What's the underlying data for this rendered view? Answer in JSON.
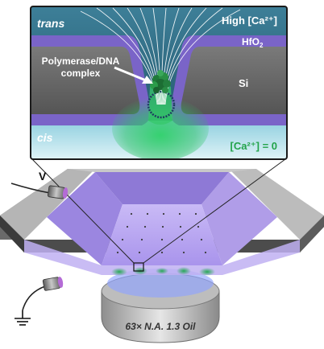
{
  "inset": {
    "trans_label": "trans",
    "cis_label": "cis",
    "high_ca_label": "High [Ca²⁺]",
    "hfo2_label": "HfO",
    "hfo2_subscript": "2",
    "si_label": "Si",
    "complex_label_line1": "Polymerase/DNA",
    "complex_label_line2": "complex",
    "zero_ca_label": "[Ca²⁺] = 0"
  },
  "device": {
    "voltage_label": "V",
    "objective_label": "63× N.A. 1.3 Oil"
  },
  "colors": {
    "trans_bg": "#2f6e86",
    "cis_bg": "#bfe6ef",
    "hfo2": "#7a64c8",
    "si": "#6e6e6e",
    "green": "#33cc66",
    "zero_ca_text": "#22a34a",
    "chip_purple": "#b8a6f0"
  }
}
